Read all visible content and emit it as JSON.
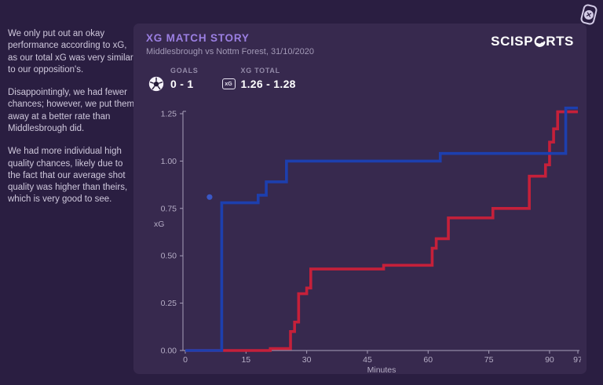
{
  "page": {
    "background": "#2a1e41",
    "panel_background": "#37294e"
  },
  "sidebar": {
    "paragraphs": [
      "We only put out an okay performance according to xG, as our total xG was very similar to our opposition's.",
      "Disappointingly, we had fewer chances; however, we put them away at a better rate than Middlesbrough did.",
      "We had more individual high quality chances, likely due to the fact that our average shot quality was higher than theirs, which is very good to see."
    ]
  },
  "header": {
    "title": "XG MATCH STORY",
    "subtitle": "Middlesbrough vs Nottm Forest, 31/10/2020",
    "title_color": "#9b7fe2"
  },
  "brand": {
    "logo_left": "SCISP",
    "logo_right": "RTS",
    "logo_full": "SCISPORTS"
  },
  "stats": [
    {
      "label": "GOALS",
      "value": "0 - 1",
      "icon": "soccer-ball-icon"
    },
    {
      "label": "XG TOTAL",
      "value": "1.26 - 1.28",
      "icon": "xg-badge-icon"
    }
  ],
  "icons": {
    "xg_badge_text": "xG",
    "corner_x": "✕"
  },
  "chart_data": {
    "type": "line",
    "subtype": "step",
    "title": "",
    "xlabel": "Minutes",
    "ylabel": "xG",
    "x_ticks": [
      0,
      15,
      30,
      45,
      60,
      75,
      90,
      97
    ],
    "y_ticks": [
      0.0,
      0.25,
      0.5,
      0.75,
      1.0,
      1.25
    ],
    "xlim": [
      0,
      97
    ],
    "ylim": [
      0,
      1.29
    ],
    "grid": false,
    "legend": "none",
    "axis_color": "#a79fba",
    "tick_label_color": "#b5adc5",
    "series": [
      {
        "name": "red-team",
        "color": "#c5203a",
        "line_width": 3.6,
        "steps": [
          [
            0,
            0
          ],
          [
            21,
            0.01
          ],
          [
            26,
            0.1
          ],
          [
            27,
            0.15
          ],
          [
            28,
            0.3
          ],
          [
            30,
            0.33
          ],
          [
            31,
            0.43
          ],
          [
            49,
            0.45
          ],
          [
            61,
            0.54
          ],
          [
            62,
            0.59
          ],
          [
            65,
            0.7
          ],
          [
            76,
            0.75
          ],
          [
            85,
            0.92
          ],
          [
            89,
            0.98
          ],
          [
            90,
            1.1
          ],
          [
            91,
            1.17
          ],
          [
            92,
            1.26
          ]
        ],
        "end_x": 97,
        "end_value": 1.26
      },
      {
        "name": "blue-team",
        "color": "#1d3fae",
        "line_width": 3.6,
        "steps": [
          [
            0,
            0
          ],
          [
            9,
            0.78
          ],
          [
            18,
            0.82
          ],
          [
            20,
            0.89
          ],
          [
            25,
            1.0
          ],
          [
            63,
            1.04
          ],
          [
            94,
            1.28
          ]
        ],
        "end_x": 97,
        "end_value": 1.28,
        "marker": {
          "x": 6,
          "y": 0.81,
          "color": "#3a57c5"
        }
      }
    ]
  }
}
